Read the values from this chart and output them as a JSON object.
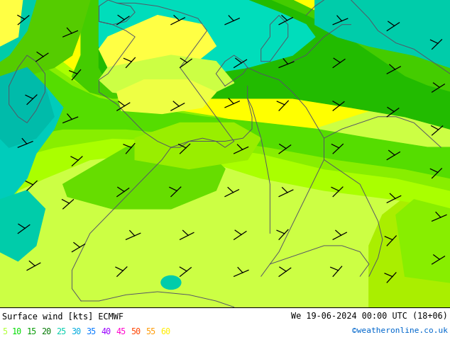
{
  "title_left": "Surface wind [kts] ECMWF",
  "title_right": "We 19-06-2024 00:00 UTC (18+06)",
  "credit": "©weatheronline.co.uk",
  "legend_values": [
    5,
    10,
    15,
    20,
    25,
    30,
    35,
    40,
    45,
    50,
    55,
    60
  ],
  "legend_colors": [
    "#adff2f",
    "#00dd00",
    "#009900",
    "#007700",
    "#00ccaa",
    "#00aadd",
    "#0077ff",
    "#9900ff",
    "#ff00cc",
    "#ff4400",
    "#ff9900",
    "#ffee00"
  ],
  "map_colors": {
    "yellow_low": "#ffff00",
    "yellow_green": "#ccff00",
    "lime": "#99ff00",
    "green_light": "#66ff00",
    "green": "#33dd00",
    "green_dark": "#00bb00",
    "green_bright": "#00ff00",
    "teal": "#00ddaa",
    "cyan": "#00cccc",
    "border": "#555566"
  },
  "fig_width": 6.34,
  "fig_height": 4.9,
  "dpi": 100
}
